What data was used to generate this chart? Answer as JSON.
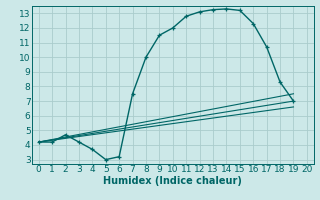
{
  "bg_color": "#cce8e8",
  "grid_color": "#aacccc",
  "line_color": "#006666",
  "xlabel": "Humidex (Indice chaleur)",
  "xlim": [
    -0.5,
    20.5
  ],
  "ylim": [
    2.7,
    13.5
  ],
  "xticks": [
    0,
    1,
    2,
    3,
    4,
    5,
    6,
    7,
    8,
    9,
    10,
    11,
    12,
    13,
    14,
    15,
    16,
    17,
    18,
    19,
    20
  ],
  "yticks": [
    3,
    4,
    5,
    6,
    7,
    8,
    9,
    10,
    11,
    12,
    13
  ],
  "curve1_x": [
    0,
    1,
    2,
    3,
    4,
    5,
    6,
    7,
    8,
    9,
    10,
    11,
    12,
    13,
    14,
    15,
    16,
    17,
    18,
    19
  ],
  "curve1_y": [
    4.2,
    4.2,
    4.7,
    4.2,
    3.7,
    3.0,
    3.2,
    7.5,
    10.0,
    11.5,
    12.0,
    12.8,
    13.1,
    13.25,
    13.3,
    13.2,
    12.3,
    10.7,
    8.3,
    7.0
  ],
  "line1_x": [
    0,
    19
  ],
  "line1_y": [
    4.2,
    7.0
  ],
  "line2_x": [
    0,
    19
  ],
  "line2_y": [
    4.2,
    6.6
  ],
  "line3_x": [
    0,
    19
  ],
  "line3_y": [
    4.2,
    7.5
  ],
  "font_size_label": 7,
  "font_size_tick": 6.5
}
